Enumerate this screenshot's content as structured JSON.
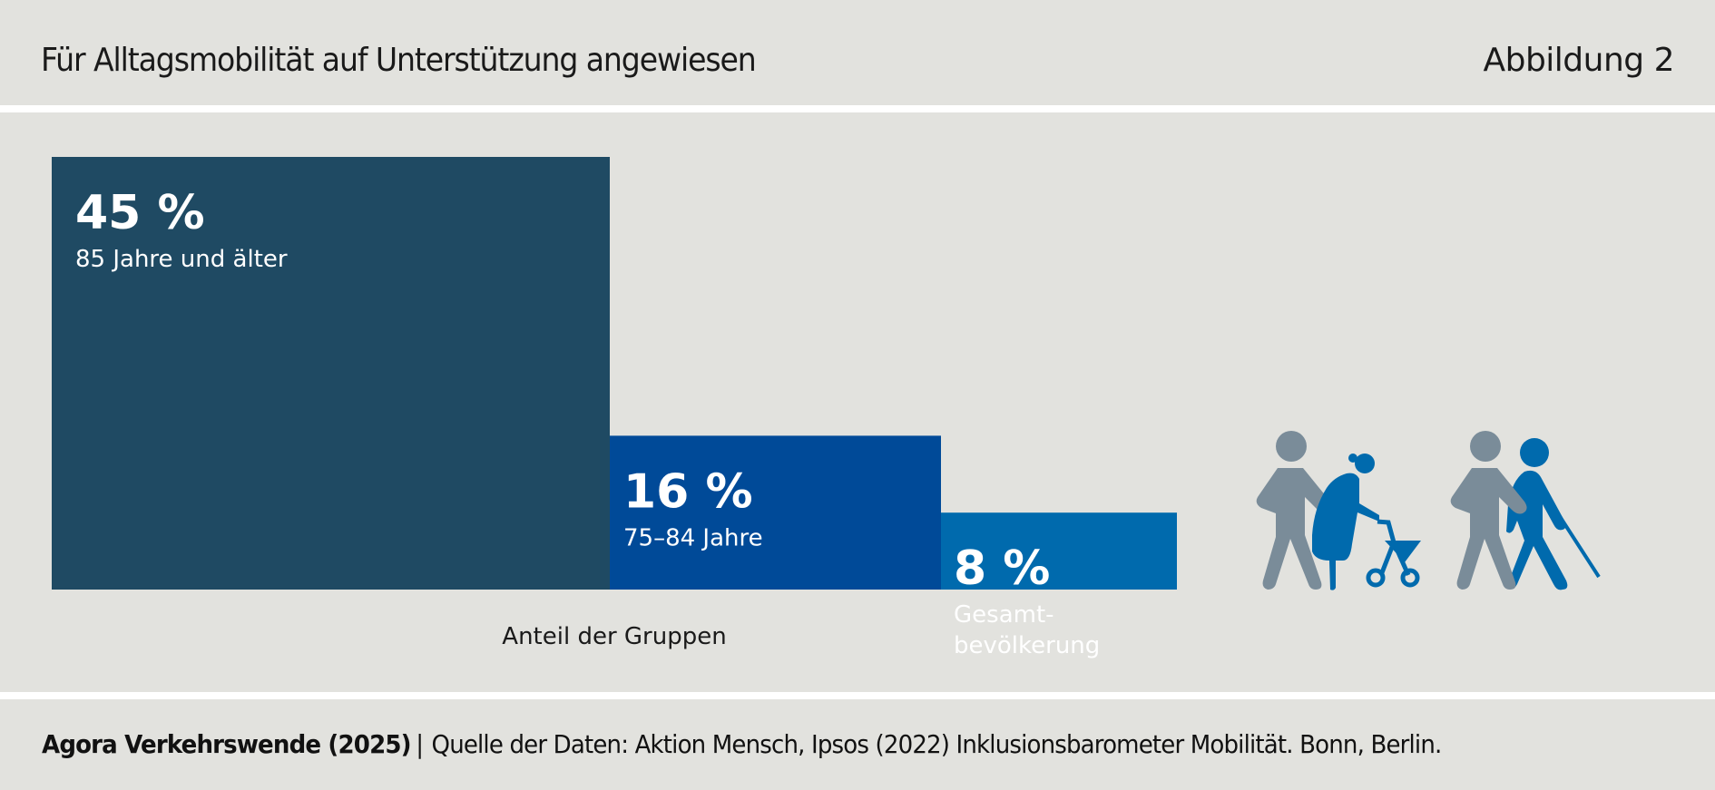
{
  "header": {
    "title": "Für Alltagsmobilität auf Unterstützung angewiesen",
    "figure_label": "Abbildung 2"
  },
  "footer": {
    "publisher": "Agora Verkehrswende (2025)",
    "separator": "|",
    "source": "Quelle der Daten: Aktion Mensch, Ipsos (2022) Inklusionsbarometer Mobilität. Bonn, Berlin."
  },
  "colors": {
    "background": "#e2e2de",
    "bar_85_plus": "#1f4a63",
    "bar_75_84": "#004a98",
    "bar_total": "#006aad",
    "icon_helper": "#7a8c99",
    "icon_assisted": "#006aad"
  },
  "icons": [
    "helper-with-rollator-user-icon",
    "helper-with-blind-person-icon"
  ],
  "chart_data": {
    "type": "bar",
    "title": "Für Alltagsmobilität auf Unterstützung angewiesen",
    "xlabel": "Anteil der Gruppen",
    "ylabel": "",
    "ylim": [
      0,
      45
    ],
    "grid": false,
    "legend": "none",
    "unit": "%",
    "categories": [
      "85 Jahre und älter",
      "75–84 Jahre",
      "Gesamtbevölkerung"
    ],
    "label_lines": [
      [
        "85 Jahre und älter"
      ],
      [
        "75–84 Jahre"
      ],
      [
        "Gesamt-",
        "bevölkerung"
      ]
    ],
    "values": [
      45,
      16,
      8
    ],
    "value_labels": [
      "45 %",
      "16 %",
      "8 %"
    ]
  }
}
